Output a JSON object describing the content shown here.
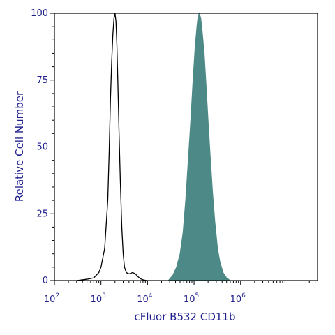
{
  "chart_data": {
    "type": "area",
    "xlabel": "cFluor B532 CD11b",
    "ylabel": "Relative Cell Number",
    "x_scale": "log",
    "xlim": [
      100,
      45000000
    ],
    "ylim": [
      0,
      100
    ],
    "x_ticks": [
      {
        "base": "10",
        "exp": "2",
        "value": 100
      },
      {
        "base": "10",
        "exp": "3",
        "value": 1000
      },
      {
        "base": "10",
        "exp": "4",
        "value": 10000
      },
      {
        "base": "10",
        "exp": "5",
        "value": 100000
      },
      {
        "base": "10",
        "exp": "6",
        "value": 1000000
      }
    ],
    "y_ticks": [
      {
        "label": "0",
        "value": 0
      },
      {
        "label": "25",
        "value": 25
      },
      {
        "label": "50",
        "value": 50
      },
      {
        "label": "75",
        "value": 75
      },
      {
        "label": "100",
        "value": 100
      }
    ],
    "grid": false,
    "series": [
      {
        "style": "outline",
        "color": "#000000",
        "x": [
          300,
          500,
          700,
          900,
          1000,
          1200,
          1400,
          1500,
          1600,
          1700,
          1800,
          1900,
          2000,
          2100,
          2200,
          2300,
          2450,
          2600,
          2800,
          3000,
          3200,
          3500,
          4000,
          4800,
          5500,
          6200,
          7000,
          8000,
          9000,
          10000
        ],
        "y": [
          0,
          0.5,
          1,
          3,
          5,
          12,
          30,
          48,
          68,
          82,
          92,
          98,
          100,
          97,
          88,
          75,
          55,
          38,
          20,
          10,
          5,
          3,
          2.5,
          3,
          2.5,
          1.5,
          0.7,
          0.3,
          0.1,
          0
        ]
      },
      {
        "style": "filled",
        "color": "#4d8a87",
        "x": [
          28000,
          35000,
          42000,
          50000,
          58000,
          66000,
          75000,
          85000,
          95000,
          105000,
          115000,
          122000,
          130000,
          140000,
          150000,
          165000,
          180000,
          200000,
          220000,
          250000,
          280000,
          320000,
          360000,
          420000,
          500000,
          600000
        ],
        "y": [
          0,
          2,
          5,
          10,
          18,
          30,
          45,
          60,
          75,
          87,
          95,
          99,
          100,
          98,
          93,
          85,
          74,
          60,
          48,
          33,
          22,
          12,
          7,
          3,
          1,
          0
        ]
      }
    ]
  }
}
